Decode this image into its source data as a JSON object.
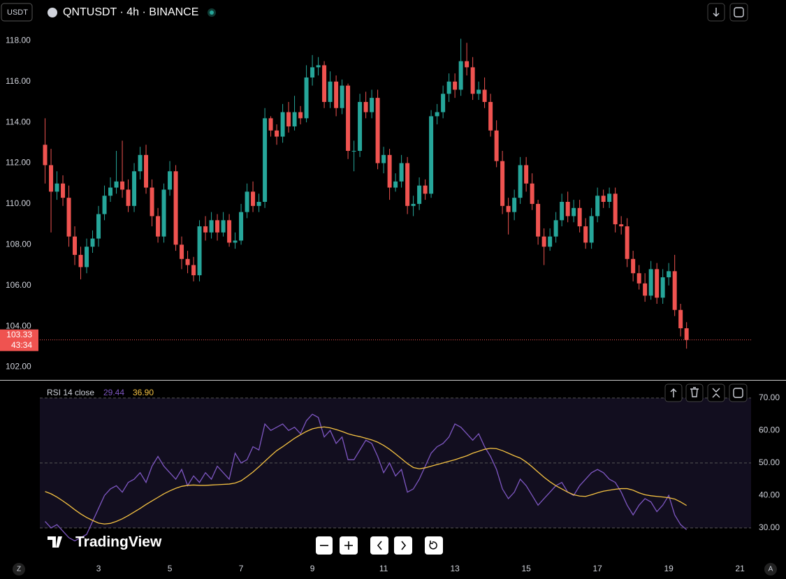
{
  "header": {
    "currency": "USDT",
    "symbol": "QNTUSDT · 4h · BINANCE"
  },
  "watermark": "TradingView",
  "footer": {
    "left": "Z",
    "right": "A"
  },
  "chart_data": [
    {
      "type": "candlestick",
      "up_color": "#26a69a",
      "down_color": "#ef5350",
      "countdown": "43:34",
      "xlim": [
        0.235,
        21.31
      ],
      "xticks": [
        3,
        5,
        7,
        9,
        11,
        13,
        15,
        17,
        19,
        21
      ],
      "ylim": [
        101.4,
        120
      ],
      "yticks": [
        {
          "value": 102,
          "label": "102.00"
        },
        {
          "value": 104,
          "label": "104.00"
        },
        {
          "value": 106,
          "label": "106.00"
        },
        {
          "value": 108,
          "label": "108.00"
        },
        {
          "value": 110,
          "label": "110.00"
        },
        {
          "value": 112,
          "label": "112.00"
        },
        {
          "value": 114,
          "label": "114.00"
        },
        {
          "value": 116,
          "label": "116.00"
        },
        {
          "value": 118,
          "label": "118.00"
        }
      ],
      "x": [
        1.5,
        1.667,
        1.833,
        2,
        2.167,
        2.333,
        2.5,
        2.667,
        2.833,
        3,
        3.167,
        3.333,
        3.5,
        3.667,
        3.833,
        4,
        4.167,
        4.333,
        4.5,
        4.667,
        4.833,
        5,
        5.167,
        5.333,
        5.5,
        5.667,
        5.833,
        6,
        6.167,
        6.333,
        6.5,
        6.667,
        6.833,
        7,
        7.167,
        7.333,
        7.5,
        7.667,
        7.833,
        8,
        8.167,
        8.333,
        8.5,
        8.667,
        8.833,
        9,
        9.167,
        9.333,
        9.5,
        9.667,
        9.833,
        10,
        10.167,
        10.333,
        10.5,
        10.667,
        10.833,
        11,
        11.167,
        11.333,
        11.5,
        11.667,
        11.833,
        12,
        12.167,
        12.333,
        12.5,
        12.667,
        12.833,
        13,
        13.167,
        13.333,
        13.5,
        13.667,
        13.833,
        14,
        14.167,
        14.333,
        14.5,
        14.667,
        14.833,
        15,
        15.167,
        15.333,
        15.5,
        15.667,
        15.833,
        16,
        16.167,
        16.333,
        16.5,
        16.667,
        16.833,
        17,
        17.167,
        17.333,
        17.5,
        17.667,
        17.833,
        18,
        18.167,
        18.333,
        18.5,
        18.667,
        18.833,
        19,
        19.167,
        19.333,
        19.5
      ],
      "open": [
        112.9,
        111.9,
        110.6,
        111.0,
        110.3,
        108.4,
        107.5,
        106.9,
        107.9,
        108.3,
        109.5,
        110.4,
        110.8,
        111.1,
        110.7,
        109.9,
        111.6,
        112.4,
        110.8,
        109.4,
        108.4,
        110.7,
        111.6,
        108.0,
        107.3,
        107.0,
        106.5,
        108.9,
        108.6,
        109.2,
        108.6,
        109.2,
        108.1,
        108.2,
        109.6,
        110.6,
        109.9,
        110.1,
        114.2,
        113.6,
        113.3,
        114.5,
        113.8,
        114.5,
        114.2,
        116.2,
        116.7,
        116.8,
        115.0,
        116.0,
        114.7,
        115.8,
        112.6,
        112.6,
        115.0,
        114.5,
        115.2,
        112.0,
        112.4,
        110.8,
        111.1,
        112.0,
        109.9,
        110.0,
        110.9,
        110.5,
        114.3,
        114.5,
        115.4,
        116.0,
        115.6,
        117.0,
        116.7,
        115.4,
        115.6,
        115.0,
        113.6,
        112.1,
        109.9,
        109.6,
        110.3,
        111.9,
        111.0,
        110.0,
        108.4,
        107.9,
        108.4,
        109.2,
        110.1,
        109.4,
        109.8,
        108.9,
        108.1,
        109.4,
        110.4,
        110.1,
        110.5,
        109.0,
        108.9,
        107.3,
        106.6,
        106.1,
        105.5,
        106.8,
        105.4,
        106.4,
        106.7,
        104.8,
        103.9
      ],
      "high": [
        114.2,
        112.7,
        111.6,
        111.4,
        110.9,
        108.9,
        107.9,
        108.3,
        108.7,
        109.9,
        110.9,
        111.3,
        112.6,
        113.1,
        111.2,
        112.0,
        112.8,
        112.9,
        111.2,
        109.8,
        111.0,
        112.1,
        111.9,
        108.4,
        107.7,
        107.4,
        109.2,
        109.4,
        109.6,
        109.5,
        109.6,
        109.5,
        108.6,
        110.0,
        111.0,
        111.1,
        110.5,
        114.7,
        114.3,
        113.9,
        114.9,
        115.0,
        115.3,
        114.8,
        116.8,
        117.3,
        117.2,
        117.0,
        116.5,
        116.3,
        116.1,
        115.9,
        113.1,
        115.4,
        115.5,
        115.6,
        115.6,
        112.8,
        112.7,
        111.5,
        112.4,
        112.3,
        110.4,
        111.3,
        111.2,
        114.6,
        114.9,
        115.8,
        116.4,
        116.4,
        118.1,
        117.9,
        117.2,
        116.0,
        116.2,
        115.4,
        114.1,
        112.6,
        110.3,
        110.7,
        112.3,
        112.3,
        111.5,
        110.2,
        108.8,
        108.8,
        109.6,
        110.5,
        110.6,
        110.2,
        110.2,
        109.3,
        109.8,
        110.8,
        110.7,
        110.8,
        110.8,
        109.4,
        109.3,
        107.7,
        107.0,
        106.6,
        107.2,
        107.1,
        106.8,
        107.1,
        107.5,
        105.1,
        104.2
      ],
      "low": [
        111.0,
        108.6,
        110.2,
        109.9,
        107.9,
        107.0,
        106.3,
        106.6,
        107.6,
        107.9,
        109.2,
        110.1,
        110.5,
        110.3,
        109.6,
        109.6,
        111.2,
        110.5,
        108.9,
        108.1,
        108.1,
        110.4,
        107.7,
        106.8,
        106.6,
        106.2,
        106.2,
        108.2,
        108.3,
        108.2,
        108.4,
        107.9,
        107.8,
        108.0,
        109.3,
        109.6,
        109.6,
        109.8,
        113.3,
        112.9,
        113.0,
        113.5,
        113.6,
        113.9,
        114.0,
        115.8,
        116.3,
        114.7,
        114.7,
        114.3,
        114.4,
        112.2,
        111.6,
        112.3,
        114.2,
        114.2,
        111.7,
        111.5,
        110.2,
        110.6,
        110.8,
        109.5,
        109.4,
        109.7,
        110.2,
        110.3,
        113.9,
        114.2,
        115.0,
        115.2,
        115.3,
        116.3,
        115.1,
        115.1,
        114.7,
        113.3,
        111.8,
        109.5,
        108.5,
        109.2,
        110.0,
        110.6,
        109.7,
        108.0,
        107.0,
        107.7,
        108.1,
        108.9,
        109.1,
        109.1,
        108.6,
        107.8,
        107.8,
        109.1,
        109.8,
        109.8,
        108.6,
        108.5,
        106.9,
        106.2,
        105.8,
        105.2,
        105.3,
        105.1,
        105.1,
        106.0,
        104.5,
        103.5,
        102.9
      ],
      "close": [
        111.9,
        110.6,
        111.0,
        110.3,
        108.4,
        107.5,
        106.9,
        107.9,
        108.3,
        109.5,
        110.4,
        110.8,
        111.1,
        110.7,
        109.9,
        111.6,
        112.4,
        110.8,
        109.4,
        108.4,
        110.7,
        111.6,
        108.0,
        107.3,
        107.0,
        106.5,
        108.9,
        108.6,
        109.2,
        108.6,
        109.2,
        108.1,
        108.2,
        109.6,
        110.6,
        109.9,
        110.1,
        114.2,
        113.6,
        113.3,
        114.5,
        113.8,
        114.5,
        114.2,
        116.2,
        116.7,
        116.8,
        115.0,
        116.0,
        114.7,
        115.8,
        112.6,
        112.6,
        115.0,
        114.5,
        115.2,
        112.0,
        112.4,
        110.8,
        111.1,
        112.0,
        109.9,
        110.0,
        110.9,
        110.5,
        114.3,
        114.5,
        115.4,
        116.0,
        115.6,
        117.0,
        116.7,
        115.4,
        115.6,
        115.0,
        113.6,
        112.1,
        109.9,
        109.6,
        110.3,
        111.9,
        111.0,
        110.0,
        108.4,
        107.9,
        108.4,
        109.2,
        110.1,
        109.4,
        109.8,
        108.9,
        108.1,
        109.4,
        110.4,
        110.1,
        110.5,
        109.0,
        108.9,
        107.3,
        106.6,
        106.1,
        105.5,
        106.8,
        105.4,
        106.4,
        106.7,
        104.8,
        103.9,
        103.33
      ]
    },
    {
      "type": "line",
      "title": "RSI 14 close",
      "band_color": "#120e1f",
      "levels": [
        70,
        50,
        30
      ],
      "ylim": [
        20.5,
        74.7
      ],
      "yticks": [
        {
          "value": 30,
          "label": "30.00"
        },
        {
          "value": 40,
          "label": "40.00"
        },
        {
          "value": 50,
          "label": "50.00"
        },
        {
          "value": 60,
          "label": "60.00"
        },
        {
          "value": 70,
          "label": "70.00"
        }
      ],
      "series": [
        {
          "color": "#7e57c2",
          "values": [
            32,
            30,
            31,
            29,
            27,
            26,
            27,
            28,
            32,
            36,
            40,
            42,
            43,
            41,
            44,
            45,
            47,
            44,
            49,
            52,
            49,
            47,
            45,
            48,
            43,
            46,
            44,
            47,
            45,
            49,
            47,
            45,
            53,
            50,
            51,
            55,
            54,
            62,
            60,
            61,
            62,
            60,
            61,
            59,
            63,
            65,
            64,
            58,
            60,
            56,
            58,
            51,
            51,
            54,
            57,
            56,
            52,
            47,
            50,
            46,
            48,
            41,
            42,
            45,
            49,
            53,
            55,
            56,
            58,
            62,
            61,
            59,
            57,
            59,
            55,
            52,
            48,
            42,
            39,
            41,
            45,
            43,
            40,
            37,
            39,
            41,
            43,
            44,
            41,
            40,
            43,
            45,
            47,
            48,
            47,
            45,
            44,
            41,
            37,
            34,
            37,
            39,
            38,
            35,
            37,
            40,
            34,
            31,
            29.44
          ]
        },
        {
          "color": "#f5c242",
          "value_label": "36.90",
          "values": [
            41.2,
            40.5,
            39.5,
            38.3,
            37,
            35.6,
            34.3,
            33.2,
            32.3,
            31.5,
            31.2,
            31.4,
            32,
            32.8,
            33.8,
            34.9,
            36,
            37.2,
            38.3,
            39.4,
            40.5,
            41.4,
            42.2,
            42.8,
            43.1,
            43.2,
            43.1,
            43.1,
            43.2,
            43.3,
            43.4,
            43.5,
            43.8,
            44.5,
            45.8,
            47.2,
            48.8,
            50.5,
            52.2,
            53.8,
            55,
            56.3,
            57.6,
            58.7,
            59.7,
            60.5,
            60.9,
            61.1,
            60.8,
            60.3,
            59.7,
            59,
            58.5,
            58.1,
            57.6,
            57.1,
            56.4,
            55.4,
            54.2,
            52.8,
            51.3,
            49.8,
            48.6,
            48.2,
            48.5,
            49,
            49.5,
            50,
            50.5,
            51,
            51.6,
            52.2,
            53,
            53.6,
            54.2,
            54.5,
            54.4,
            53.8,
            53,
            52.2,
            51.5,
            50.3,
            48.8,
            47.2,
            45.6,
            44.2,
            43,
            42,
            41,
            40.2,
            39.8,
            39.7,
            40.2,
            40.8,
            41.3,
            41.6,
            41.9,
            42.1,
            42.1,
            41.6,
            40.8,
            40.2,
            39.9,
            39.7,
            39.5,
            39.3,
            38.9,
            38,
            36.9
          ]
        }
      ]
    }
  ]
}
